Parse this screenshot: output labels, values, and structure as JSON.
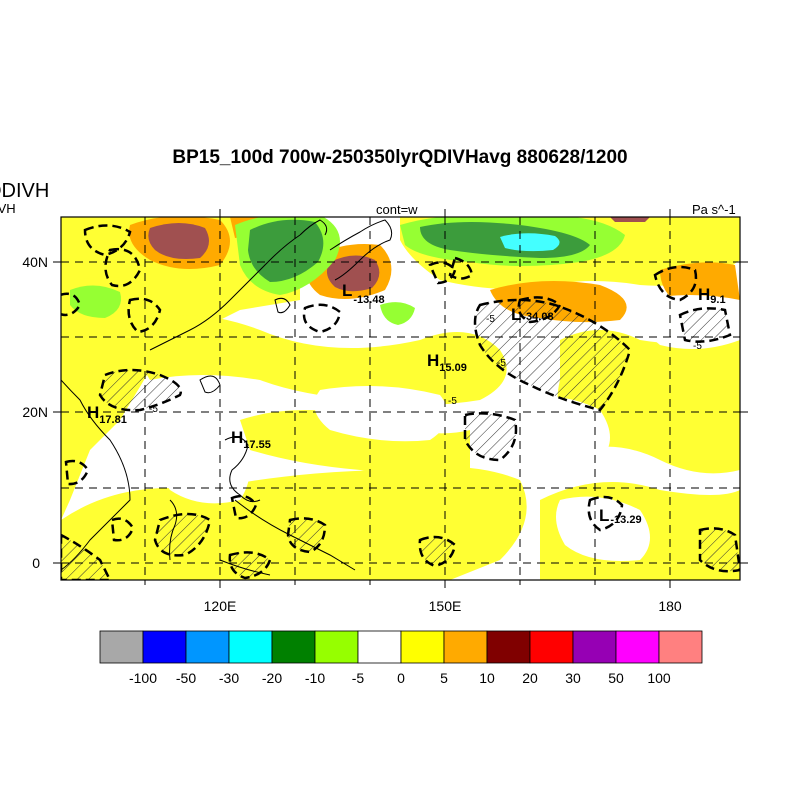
{
  "title": "BP15_100d 700w-250350lyrQDIVHavg  880628/1200",
  "left_title": "QDIVH",
  "left_subtitle": "IVH",
  "center_label": "cont=w",
  "units": "Pa s^-1",
  "axes": {
    "lon_ticks": [
      "120E",
      "150E",
      "180"
    ],
    "lat_ticks": [
      "40N",
      "20N",
      "0"
    ]
  },
  "colorbar": {
    "colors": [
      "#a8a8a8",
      "#0000ff",
      "#0096ff",
      "#00ffff",
      "#008000",
      "#96ff00",
      "#ffffff",
      "#ffff00",
      "#ffaa00",
      "#800000",
      "#ff0000",
      "#9600b4",
      "#ff00ff",
      "#ff8080"
    ],
    "labels": [
      "-100",
      "-50",
      "-30",
      "-20",
      "-10",
      "-5",
      "0",
      "5",
      "10",
      "20",
      "30",
      "50",
      "100"
    ]
  },
  "centers": [
    {
      "type": "H",
      "value": "17.81"
    },
    {
      "type": "H",
      "value": "17.55"
    },
    {
      "type": "L",
      "value": "-13.48"
    },
    {
      "type": "H",
      "value": "15.09"
    },
    {
      "type": "L",
      "value": "-34.08"
    },
    {
      "type": "H",
      "value": "9.1"
    },
    {
      "type": "L",
      "value": "-13.29"
    }
  ],
  "contour_labels": [
    "-5",
    "-5",
    "-5",
    "-5",
    "-5"
  ]
}
